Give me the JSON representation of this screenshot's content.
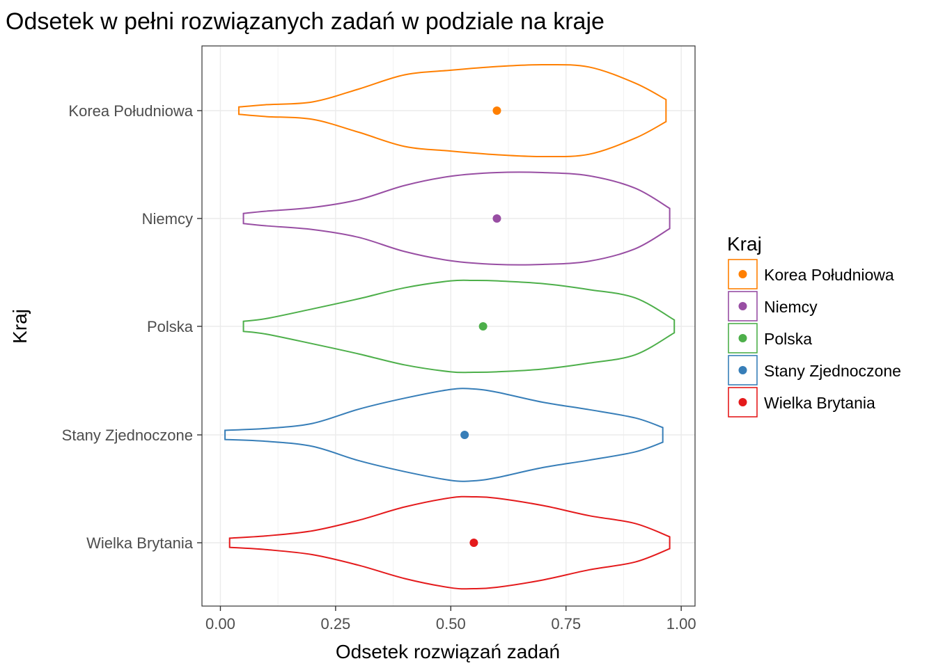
{
  "chart_data": {
    "type": "violin",
    "title": "Odsetek w pełni rozwiązanych zadań w podziale na kraje",
    "xlabel": "Odsetek rozwiązań zadań",
    "ylabel": "Kraj",
    "xlim": [
      -0.04,
      1.03
    ],
    "x_ticks": [
      "0.00",
      "0.25",
      "0.50",
      "0.75",
      "1.00"
    ],
    "x_tick_values": [
      0,
      0.25,
      0.5,
      0.75,
      1.0
    ],
    "grid": true,
    "legend": {
      "title": "Kraj",
      "placement": "right"
    },
    "series": [
      {
        "name": "Korea Południowa",
        "color": "#FF7F00",
        "point_x": 0.6,
        "density_x": [
          0.04,
          0.1,
          0.2,
          0.3,
          0.4,
          0.5,
          0.6,
          0.7,
          0.8,
          0.9,
          0.967
        ],
        "density_w": [
          0.08,
          0.13,
          0.19,
          0.47,
          0.78,
          0.88,
          0.96,
          1.0,
          0.95,
          0.6,
          0.24
        ]
      },
      {
        "name": "Niemcy",
        "color": "#984EA3",
        "point_x": 0.6,
        "density_x": [
          0.05,
          0.1,
          0.2,
          0.3,
          0.4,
          0.5,
          0.6,
          0.7,
          0.8,
          0.9,
          0.975
        ],
        "density_w": [
          0.11,
          0.16,
          0.24,
          0.41,
          0.72,
          0.92,
          1.0,
          1.0,
          0.93,
          0.66,
          0.22
        ]
      },
      {
        "name": "Polska",
        "color": "#4DAF4A",
        "point_x": 0.57,
        "density_x": [
          0.05,
          0.1,
          0.2,
          0.3,
          0.4,
          0.5,
          0.55,
          0.6,
          0.7,
          0.8,
          0.9,
          0.985
        ],
        "density_w": [
          0.11,
          0.17,
          0.38,
          0.6,
          0.84,
          0.99,
          1.0,
          0.99,
          0.93,
          0.8,
          0.62,
          0.14
        ]
      },
      {
        "name": "Stany Zjednoczone",
        "color": "#377EB8",
        "point_x": 0.53,
        "density_x": [
          0.01,
          0.1,
          0.2,
          0.3,
          0.4,
          0.5,
          0.55,
          0.6,
          0.7,
          0.8,
          0.9,
          0.96
        ],
        "density_w": [
          0.1,
          0.14,
          0.25,
          0.56,
          0.8,
          0.99,
          1.0,
          0.93,
          0.71,
          0.55,
          0.37,
          0.16
        ]
      },
      {
        "name": "Wielka Brytania",
        "color": "#E41A1C",
        "point_x": 0.55,
        "density_x": [
          0.02,
          0.1,
          0.2,
          0.3,
          0.4,
          0.5,
          0.55,
          0.6,
          0.7,
          0.8,
          0.9,
          0.975
        ],
        "density_w": [
          0.1,
          0.15,
          0.26,
          0.49,
          0.78,
          0.98,
          1.0,
          0.97,
          0.81,
          0.59,
          0.42,
          0.13
        ]
      }
    ],
    "legend_order": [
      "Korea Południowa",
      "Niemcy",
      "Polska",
      "Stany Zjednoczone",
      "Wielka Brytania"
    ]
  }
}
